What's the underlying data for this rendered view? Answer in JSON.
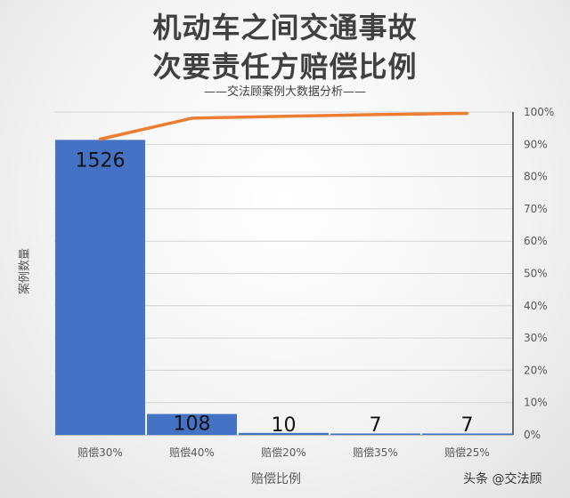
{
  "header": {
    "title_line1": "机动车之间交通事故",
    "title_line2": "次要责任方赔偿比例",
    "subtitle": "——交法顾案例大数据分析——"
  },
  "watermark": "头条 @交法顾",
  "chart_data": {
    "type": "bar",
    "categories": [
      "赔偿30%",
      "赔偿40%",
      "赔偿20%",
      "赔偿35%",
      "赔偿25%"
    ],
    "values": [
      1526,
      108,
      10,
      7,
      7
    ],
    "cumulative_percent": [
      91.6,
      98.1,
      98.7,
      99.2,
      99.6
    ],
    "xlabel": "赔偿比例",
    "ylabel": "案例数量",
    "ylim": [
      0,
      1670
    ],
    "y2_ticks": [
      "0%",
      "10%",
      "20%",
      "30%",
      "40%",
      "50%",
      "60%",
      "70%",
      "80%",
      "90%",
      "100%"
    ],
    "y2lim": [
      0,
      100
    ],
    "bar_color": "#4472c4",
    "line_color": "#ed7d31",
    "grid": true
  }
}
